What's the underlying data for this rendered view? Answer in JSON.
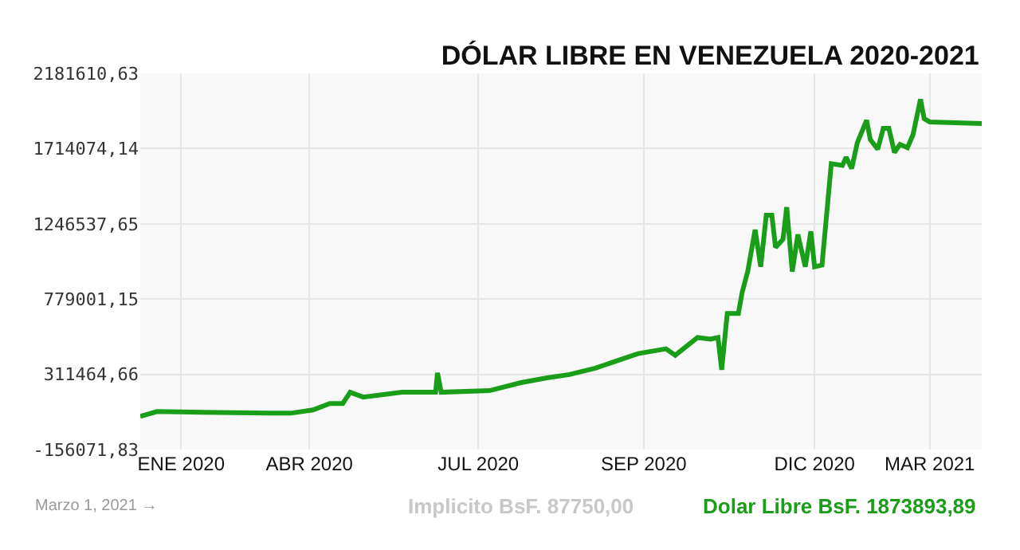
{
  "chart_data": {
    "type": "line",
    "title": "DÓLAR LIBRE EN VENEZUELA 2020-2021",
    "x": [
      "2020-01-01",
      "2020-01-10",
      "2020-03-11",
      "2020-03-22",
      "2020-04-03",
      "2020-04-12",
      "2020-04-19",
      "2020-04-23",
      "2020-04-30",
      "2020-05-21",
      "2020-06-08",
      "2020-06-09",
      "2020-06-11",
      "2020-07-07",
      "2020-07-24",
      "2020-08-07",
      "2020-08-19",
      "2020-09-02",
      "2020-09-25",
      "2020-10-10",
      "2020-10-15",
      "2020-10-27",
      "2020-11-03",
      "2020-11-07",
      "2020-11-09",
      "2020-11-12",
      "2020-11-18",
      "2020-11-20",
      "2020-11-23",
      "2020-11-27",
      "2020-11-30",
      "2020-12-03",
      "2020-12-06",
      "2020-12-08",
      "2020-12-12",
      "2020-12-14",
      "2020-12-17",
      "2020-12-20",
      "2020-12-24",
      "2020-12-27",
      "2020-12-29",
      "2021-01-02",
      "2021-01-07",
      "2021-01-13",
      "2021-01-15",
      "2021-01-18",
      "2021-01-21",
      "2021-01-26",
      "2021-01-28",
      "2021-02-01",
      "2021-02-04",
      "2021-02-07",
      "2021-02-10",
      "2021-02-13",
      "2021-02-17",
      "2021-02-20",
      "2021-02-24",
      "2021-02-26",
      "2021-03-01",
      "2021-03-29"
    ],
    "series": [
      {
        "color": "#1a9e1a",
        "values": [
          50000,
          80000,
          70000,
          70000,
          90000,
          130000,
          130000,
          200000,
          170000,
          200000,
          200000,
          320000,
          200000,
          210000,
          260000,
          290000,
          310000,
          350000,
          440000,
          470000,
          430000,
          540000,
          530000,
          540000,
          340000,
          690000,
          690000,
          820000,
          950000,
          1210000,
          980000,
          1300000,
          1300000,
          1100000,
          1150000,
          1350000,
          950000,
          1180000,
          980000,
          1200000,
          980000,
          990000,
          1620000,
          1610000,
          1660000,
          1590000,
          1750000,
          1890000,
          1770000,
          1710000,
          1840000,
          1840000,
          1690000,
          1740000,
          1720000,
          1800000,
          2020000,
          1900000,
          1880000,
          1870000
        ]
      }
    ],
    "xlim": [
      "2020-01-01",
      "2021-03-29"
    ],
    "xticks": [
      {
        "value": "2020-01-23",
        "label": "ENE 2020"
      },
      {
        "value": "2020-04-01",
        "label": "ABR 2020"
      },
      {
        "value": "2020-07-01",
        "label": "JUL 2020"
      },
      {
        "value": "2020-09-28",
        "label": "SEP 2020"
      },
      {
        "value": "2020-12-29",
        "label": "DIC 2020"
      },
      {
        "value": "2021-03-01",
        "label": "MAR 2021"
      }
    ],
    "ylim": [
      -156071.83,
      2181610.63
    ],
    "yticks": [
      {
        "value": -156071.83,
        "label": "-156071,83"
      },
      {
        "value": 311464.66,
        "label": "311464,66"
      },
      {
        "value": 779001.15,
        "label": "779001,15"
      },
      {
        "value": 1246537.65,
        "label": "1246537,65"
      },
      {
        "value": 1714074.14,
        "label": "1714074,14"
      },
      {
        "value": 2181610.63,
        "label": "2181610,63"
      }
    ],
    "grid": true,
    "legend": false,
    "marker": "none",
    "line_style": "solid",
    "annotations": [
      "Marzo 1, 2021 →",
      "Implicito BsF. 87750,00",
      "Dolar Libre BsF. 1873893,89"
    ]
  }
}
